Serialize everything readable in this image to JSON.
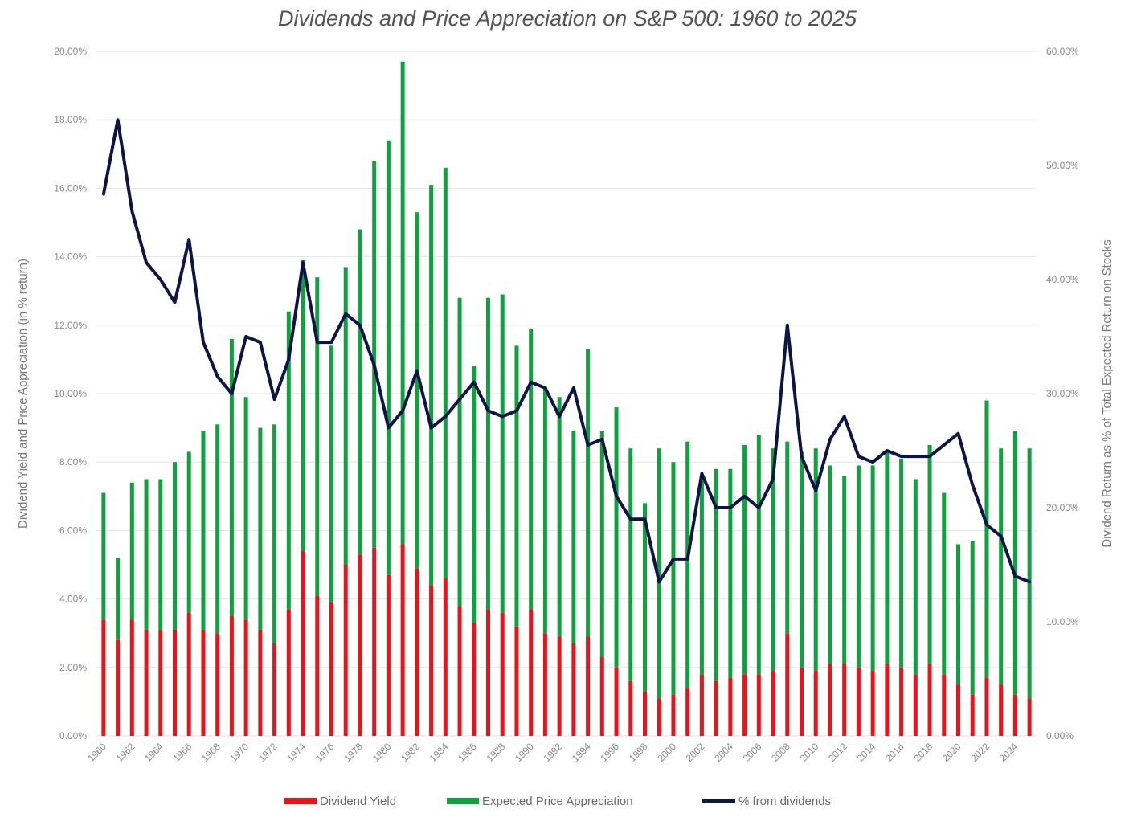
{
  "chart_data": {
    "type": "bar",
    "stacked": true,
    "title": "Dividends and Price Appreciation on S&P 500: 1960 to 2025",
    "ylabel": "Dividend Yield and Price Appreciation (in % return)",
    "y2label": "Dividend Return as % of Total Expected Return on Stocks",
    "ylim": [
      0,
      20
    ],
    "y2lim": [
      0,
      60
    ],
    "yticks": [
      "0.00%",
      "2.00%",
      "4.00%",
      "6.00%",
      "8.00%",
      "10.00%",
      "12.00%",
      "14.00%",
      "16.00%",
      "18.00%",
      "20.00%"
    ],
    "y2ticks": [
      "0.00%",
      "10.00%",
      "20.00%",
      "30.00%",
      "40.00%",
      "50.00%",
      "60.00%"
    ],
    "grid": true,
    "legend_position": "bottom",
    "x": [
      1960,
      1961,
      1962,
      1963,
      1964,
      1965,
      1966,
      1967,
      1968,
      1969,
      1970,
      1971,
      1972,
      1973,
      1974,
      1975,
      1976,
      1977,
      1978,
      1979,
      1980,
      1981,
      1982,
      1983,
      1984,
      1985,
      1986,
      1987,
      1988,
      1989,
      1990,
      1991,
      1992,
      1993,
      1994,
      1995,
      1996,
      1997,
      1998,
      1999,
      2000,
      2001,
      2002,
      2003,
      2004,
      2005,
      2006,
      2007,
      2008,
      2009,
      2010,
      2011,
      2012,
      2013,
      2014,
      2015,
      2016,
      2017,
      2018,
      2019,
      2020,
      2021,
      2022,
      2023,
      2024,
      2025
    ],
    "x_tick_labels": [
      "1960",
      "1962",
      "1964",
      "1966",
      "1968",
      "1970",
      "1972",
      "1974",
      "1976",
      "1978",
      "1980",
      "1982",
      "1984",
      "1986",
      "1988",
      "1990",
      "1992",
      "1994",
      "1996",
      "1998",
      "2000",
      "2002",
      "2004",
      "2006",
      "2008",
      "2010",
      "2012",
      "2014",
      "2016",
      "2018",
      "2020",
      "2022",
      "2024"
    ],
    "series": [
      {
        "name": "Dividend Yield",
        "color": "#e8141a",
        "kind": "bar",
        "axis": "left",
        "values": [
          3.4,
          2.8,
          3.4,
          3.1,
          3.1,
          3.1,
          3.6,
          3.1,
          3.0,
          3.5,
          3.4,
          3.1,
          2.7,
          3.7,
          5.4,
          4.1,
          3.9,
          5.0,
          5.3,
          5.5,
          4.7,
          5.6,
          4.9,
          4.4,
          4.6,
          3.8,
          3.3,
          3.7,
          3.6,
          3.2,
          3.7,
          3.0,
          2.9,
          2.7,
          2.9,
          2.3,
          2.0,
          1.6,
          1.3,
          1.1,
          1.2,
          1.4,
          1.8,
          1.6,
          1.7,
          1.8,
          1.8,
          1.9,
          3.0,
          2.0,
          1.9,
          2.1,
          2.1,
          2.0,
          1.9,
          2.1,
          2.0,
          1.8,
          2.1,
          1.8,
          1.5,
          1.2,
          1.7,
          1.5,
          1.2,
          1.1
        ]
      },
      {
        "name": "Expected Price Appreciation",
        "color": "#10a040",
        "kind": "bar",
        "axis": "left",
        "values": [
          3.7,
          2.4,
          4.0,
          4.4,
          4.4,
          4.9,
          4.7,
          5.8,
          6.1,
          8.1,
          6.5,
          5.9,
          6.4,
          8.7,
          8.5,
          9.3,
          7.5,
          8.7,
          9.5,
          11.3,
          12.7,
          14.1,
          10.4,
          11.7,
          12.0,
          9.0,
          7.5,
          9.1,
          9.3,
          8.2,
          8.2,
          7.2,
          7.0,
          6.2,
          8.4,
          6.6,
          7.6,
          6.8,
          5.5,
          7.3,
          6.8,
          7.2,
          5.8,
          6.2,
          6.1,
          6.7,
          7.0,
          6.5,
          5.6,
          6.3,
          6.5,
          5.8,
          5.5,
          5.9,
          6.0,
          6.2,
          6.1,
          5.7,
          6.4,
          5.3,
          4.1,
          4.5,
          8.1,
          6.9,
          7.7,
          7.3
        ]
      },
      {
        "name": "% from dividends",
        "color": "#0d1547",
        "kind": "line",
        "axis": "right",
        "values": [
          47.5,
          54.0,
          46.0,
          41.5,
          40.0,
          38.0,
          43.5,
          34.5,
          31.5,
          30.0,
          35.0,
          34.5,
          29.5,
          33.0,
          41.5,
          34.5,
          34.5,
          37.0,
          36.0,
          32.5,
          27.0,
          28.5,
          32.0,
          27.0,
          28.0,
          29.5,
          31.0,
          28.5,
          28.0,
          28.5,
          31.0,
          30.5,
          28.0,
          30.5,
          25.5,
          26.0,
          21.0,
          19.0,
          19.0,
          13.5,
          15.5,
          15.5,
          23.0,
          20.0,
          20.0,
          21.0,
          20.0,
          22.5,
          36.0,
          24.5,
          21.5,
          26.0,
          28.0,
          24.5,
          24.0,
          25.0,
          24.5,
          24.5,
          24.5,
          25.5,
          26.5,
          22.0,
          18.5,
          17.5,
          14.0,
          13.5
        ]
      }
    ]
  }
}
